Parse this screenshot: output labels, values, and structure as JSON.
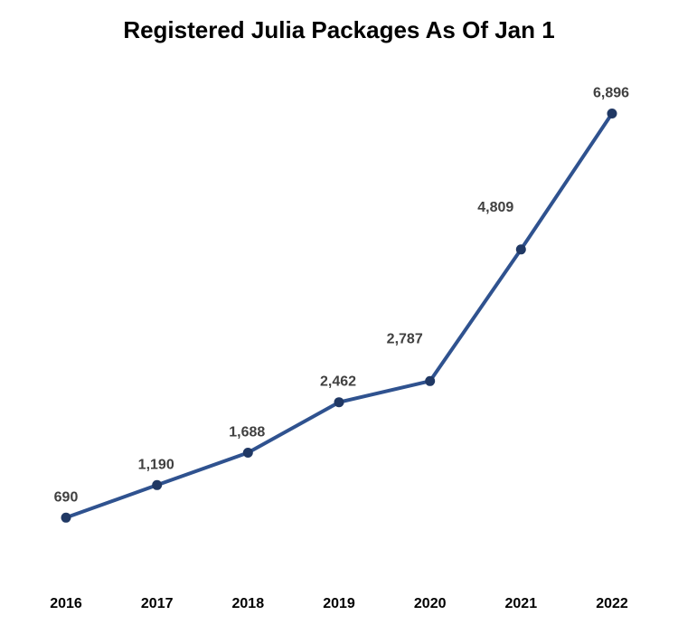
{
  "chart_data": {
    "type": "line",
    "title": "Registered Julia Packages As Of Jan 1",
    "xlabel": "",
    "ylabel": "",
    "categories": [
      "2016",
      "2017",
      "2018",
      "2019",
      "2020",
      "2021",
      "2022"
    ],
    "series": [
      {
        "values": [
          690,
          1190,
          1688,
          2462,
          2787,
          4809,
          6896
        ],
        "labels": [
          "690",
          "1,190",
          "1,688",
          "2,462",
          "2,787",
          "4,809",
          "6,896"
        ]
      }
    ],
    "ylim": [
      0,
      7500
    ],
    "grid": false,
    "legend": "none",
    "line_color": "#2F528F",
    "marker_color": "#203864"
  }
}
